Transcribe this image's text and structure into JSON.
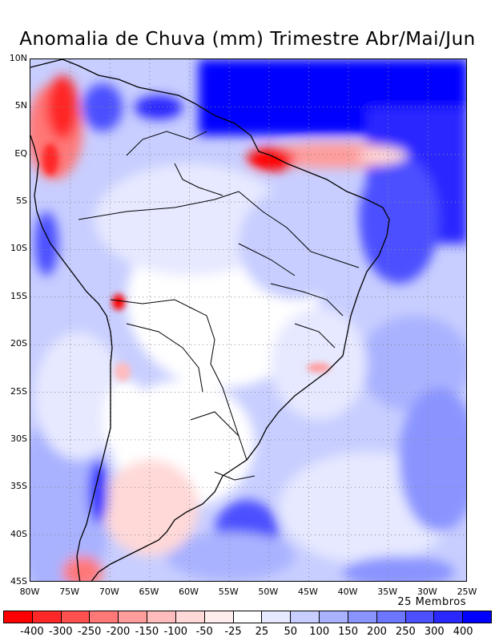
{
  "title": "Anomalia de Chuva (mm) Trimestre Abr/Mai/Jun",
  "members_label": "25 Membros",
  "lat_labels": [
    "10N",
    "5N",
    "EQ",
    "5S",
    "10S",
    "15S",
    "20S",
    "25S",
    "30S",
    "35S",
    "40S",
    "45S"
  ],
  "lon_labels": [
    "80W",
    "75W",
    "70W",
    "65W",
    "60W",
    "55W",
    "50W",
    "45W",
    "40W",
    "35W",
    "30W",
    "25W"
  ],
  "colorbar": {
    "labels": [
      "-400",
      "-300",
      "-250",
      "-200",
      "-150",
      "-100",
      "-50",
      "-25",
      "25",
      "50",
      "100",
      "150",
      "200",
      "250",
      "300",
      "400"
    ],
    "colors": [
      "#ff0000",
      "#ff2828",
      "#ff5050",
      "#ff7878",
      "#ff9c9c",
      "#ffbcbc",
      "#ffd8d8",
      "#ffeded",
      "#ffffff",
      "#e6e9ff",
      "#c8ceff",
      "#a9b2ff",
      "#8a94ff",
      "#6d76ff",
      "#4c50ff",
      "#2a28ff",
      "#0000ff"
    ]
  }
}
